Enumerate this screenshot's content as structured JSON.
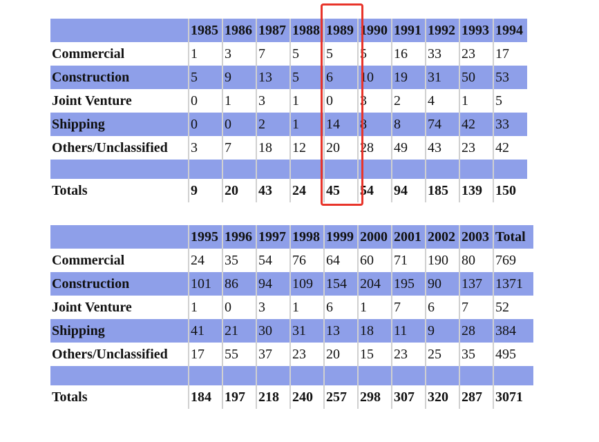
{
  "tables": [
    {
      "header": [
        "1985",
        "1986",
        "1987",
        "1988",
        "1989",
        "1990",
        "1991",
        "1992",
        "1993",
        "1994"
      ],
      "rows": [
        {
          "label": "Commercial",
          "values": [
            1,
            3,
            7,
            5,
            5,
            5,
            16,
            33,
            23,
            17
          ]
        },
        {
          "label": "Construction",
          "values": [
            5,
            9,
            13,
            5,
            6,
            10,
            19,
            31,
            50,
            53
          ]
        },
        {
          "label": "Joint Venture",
          "values": [
            0,
            1,
            3,
            1,
            0,
            3,
            2,
            4,
            1,
            5
          ]
        },
        {
          "label": "Shipping",
          "values": [
            0,
            0,
            2,
            1,
            14,
            8,
            8,
            74,
            42,
            33
          ]
        },
        {
          "label": "Others/Unclassified",
          "values": [
            3,
            7,
            18,
            12,
            20,
            28,
            49,
            43,
            23,
            42
          ]
        }
      ],
      "totals": {
        "label": "Totals",
        "values": [
          9,
          20,
          43,
          24,
          45,
          54,
          94,
          185,
          139,
          150
        ]
      }
    },
    {
      "header": [
        "1995",
        "1996",
        "1997",
        "1998",
        "1999",
        "2000",
        "2001",
        "2002",
        "2003",
        "Total"
      ],
      "rows": [
        {
          "label": "Commercial",
          "values": [
            24,
            35,
            54,
            76,
            64,
            60,
            71,
            190,
            80,
            769
          ]
        },
        {
          "label": "Construction",
          "values": [
            101,
            86,
            94,
            109,
            154,
            204,
            195,
            90,
            137,
            1371
          ]
        },
        {
          "label": "Joint Venture",
          "values": [
            1,
            0,
            3,
            1,
            6,
            1,
            7,
            6,
            7,
            52
          ]
        },
        {
          "label": "Shipping",
          "values": [
            41,
            21,
            30,
            31,
            13,
            18,
            11,
            9,
            28,
            384
          ]
        },
        {
          "label": "Others/Unclassified",
          "values": [
            17,
            55,
            37,
            23,
            20,
            15,
            23,
            25,
            35,
            495
          ]
        }
      ],
      "totals": {
        "label": "Totals",
        "values": [
          184,
          197,
          218,
          240,
          257,
          298,
          307,
          320,
          287,
          3071
        ]
      }
    }
  ]
}
